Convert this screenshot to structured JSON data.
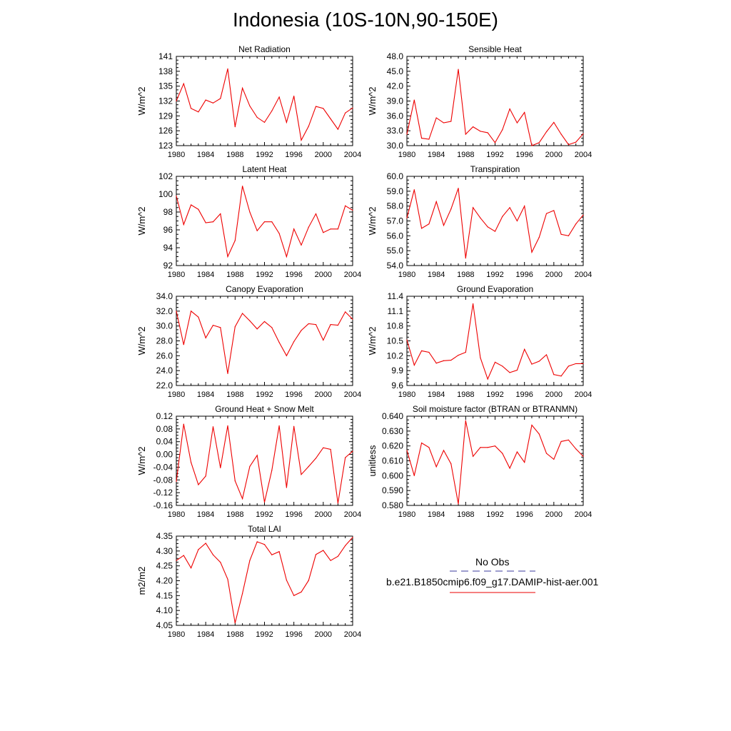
{
  "figure": {
    "title": "Indonesia (10S-10N,90-150E)"
  },
  "legend": {
    "obs_label": "No Obs",
    "obs_color": "#3b3b9c",
    "case_label": "b.e21.B1850cmip6.f09_g17.DAMIP-hist-aer.001",
    "case_color": "#ee0000"
  },
  "chart_data": [
    {
      "type": "line",
      "title": "Net Radiation",
      "xlabel": "",
      "ylabel": "W/m^2",
      "x": [
        1980,
        1981,
        1982,
        1983,
        1984,
        1985,
        1986,
        1987,
        1988,
        1989,
        1990,
        1991,
        1992,
        1993,
        1994,
        1995,
        1996,
        1997,
        1998,
        1999,
        2000,
        2001,
        2002,
        2003,
        2004
      ],
      "xlim": [
        1980,
        2004
      ],
      "ylim": [
        123,
        141
      ],
      "yticks": [
        123,
        126,
        129,
        132,
        135,
        138,
        141
      ],
      "ytick_labels": [
        "123",
        "126",
        "129",
        "132",
        "135",
        "138",
        "141"
      ],
      "series": [
        {
          "values": [
            132.0,
            135.5,
            130.5,
            129.8,
            132.2,
            131.6,
            132.5,
            138.5,
            126.8,
            134.6,
            131.0,
            128.7,
            127.7,
            130.0,
            132.8,
            127.7,
            133.0,
            124.1,
            126.9,
            130.9,
            130.5,
            128.4,
            126.3,
            129.6,
            130.6
          ]
        }
      ]
    },
    {
      "type": "line",
      "title": "Sensible Heat",
      "xlabel": "",
      "ylabel": "W/m^2",
      "x": [
        1980,
        1981,
        1982,
        1983,
        1984,
        1985,
        1986,
        1987,
        1988,
        1989,
        1990,
        1991,
        1992,
        1993,
        1994,
        1995,
        1996,
        1997,
        1998,
        1999,
        2000,
        2001,
        2002,
        2003,
        2004
      ],
      "xlim": [
        1980,
        2004
      ],
      "ylim": [
        30,
        48
      ],
      "yticks": [
        30,
        33,
        36,
        39,
        42,
        45,
        48
      ],
      "ytick_labels": [
        "30.0",
        "33.0",
        "36.0",
        "39.0",
        "42.0",
        "45.0",
        "48.0"
      ],
      "series": [
        {
          "values": [
            32.3,
            39.2,
            31.5,
            31.3,
            35.6,
            34.6,
            34.9,
            45.4,
            32.3,
            33.8,
            32.9,
            32.6,
            30.6,
            33.2,
            37.4,
            34.6,
            36.7,
            30.0,
            30.6,
            32.8,
            34.7,
            32.3,
            30.2,
            30.7,
            32.4
          ]
        }
      ]
    },
    {
      "type": "line",
      "title": "Latent Heat",
      "xlabel": "",
      "ylabel": "W/m^2",
      "x": [
        1980,
        1981,
        1982,
        1983,
        1984,
        1985,
        1986,
        1987,
        1988,
        1989,
        1990,
        1991,
        1992,
        1993,
        1994,
        1995,
        1996,
        1997,
        1998,
        1999,
        2000,
        2001,
        2002,
        2003,
        2004
      ],
      "xlim": [
        1980,
        2004
      ],
      "ylim": [
        92,
        102
      ],
      "yticks": [
        92,
        94,
        96,
        98,
        100,
        102
      ],
      "ytick_labels": [
        "92",
        "94",
        "96",
        "98",
        "100",
        "102"
      ],
      "series": [
        {
          "values": [
            99.8,
            96.6,
            98.8,
            98.3,
            96.8,
            96.9,
            97.8,
            93.0,
            94.8,
            100.9,
            98.0,
            95.9,
            96.9,
            96.9,
            95.6,
            93.0,
            96.1,
            94.3,
            96.3,
            97.8,
            95.7,
            96.1,
            96.1,
            98.7,
            98.2
          ]
        }
      ]
    },
    {
      "type": "line",
      "title": "Transpiration",
      "xlabel": "",
      "ylabel": "W/m^2",
      "x": [
        1980,
        1981,
        1982,
        1983,
        1984,
        1985,
        1986,
        1987,
        1988,
        1989,
        1990,
        1991,
        1992,
        1993,
        1994,
        1995,
        1996,
        1997,
        1998,
        1999,
        2000,
        2001,
        2002,
        2003,
        2004
      ],
      "xlim": [
        1980,
        2004
      ],
      "ylim": [
        54,
        60
      ],
      "yticks": [
        54,
        55,
        56,
        57,
        58,
        59,
        60
      ],
      "ytick_labels": [
        "54.0",
        "55.0",
        "56.0",
        "57.0",
        "58.0",
        "59.0",
        "60.0"
      ],
      "series": [
        {
          "values": [
            57.2,
            59.1,
            56.5,
            56.8,
            58.3,
            56.7,
            57.8,
            59.2,
            54.5,
            57.9,
            57.2,
            56.6,
            56.3,
            57.3,
            57.9,
            57.0,
            58.0,
            54.9,
            55.9,
            57.5,
            57.7,
            56.1,
            56.0,
            56.8,
            57.4
          ]
        }
      ]
    },
    {
      "type": "line",
      "title": "Canopy Evaporation",
      "xlabel": "",
      "ylabel": "W/m^2",
      "x": [
        1980,
        1981,
        1982,
        1983,
        1984,
        1985,
        1986,
        1987,
        1988,
        1989,
        1990,
        1991,
        1992,
        1993,
        1994,
        1995,
        1996,
        1997,
        1998,
        1999,
        2000,
        2001,
        2002,
        2003,
        2004
      ],
      "xlim": [
        1980,
        2004
      ],
      "ylim": [
        22,
        34
      ],
      "yticks": [
        22,
        24,
        26,
        28,
        30,
        32,
        34
      ],
      "ytick_labels": [
        "22.0",
        "24.0",
        "26.0",
        "28.0",
        "30.0",
        "32.0",
        "34.0"
      ],
      "series": [
        {
          "values": [
            32.0,
            27.5,
            32.0,
            31.2,
            28.4,
            30.1,
            29.8,
            23.6,
            29.9,
            31.7,
            30.7,
            29.6,
            30.6,
            29.8,
            27.8,
            26.0,
            27.9,
            29.4,
            30.3,
            30.2,
            28.1,
            30.2,
            30.1,
            31.9,
            30.9
          ]
        }
      ]
    },
    {
      "type": "line",
      "title": "Ground Evaporation",
      "xlabel": "",
      "ylabel": "W/m^2",
      "x": [
        1980,
        1981,
        1982,
        1983,
        1984,
        1985,
        1986,
        1987,
        1988,
        1989,
        1990,
        1991,
        1992,
        1993,
        1994,
        1995,
        1996,
        1997,
        1998,
        1999,
        2000,
        2001,
        2002,
        2003,
        2004
      ],
      "xlim": [
        1980,
        2004
      ],
      "ylim": [
        9.6,
        11.4
      ],
      "yticks": [
        9.6,
        9.9,
        10.2,
        10.5,
        10.8,
        11.1,
        11.4
      ],
      "ytick_labels": [
        "9.6",
        "9.9",
        "10.2",
        "10.5",
        "10.8",
        "11.1",
        "11.4"
      ],
      "series": [
        {
          "values": [
            10.52,
            10.01,
            10.3,
            10.27,
            10.05,
            10.1,
            10.11,
            10.21,
            10.27,
            11.25,
            10.16,
            9.73,
            10.07,
            9.99,
            9.86,
            9.91,
            10.33,
            10.03,
            10.09,
            10.22,
            9.82,
            9.79,
            9.99,
            10.04,
            10.04
          ]
        }
      ]
    },
    {
      "type": "line",
      "title": "Ground Heat + Snow Melt",
      "xlabel": "",
      "ylabel": "W/m^2",
      "x": [
        1980,
        1981,
        1982,
        1983,
        1984,
        1985,
        1986,
        1987,
        1988,
        1989,
        1990,
        1991,
        1992,
        1993,
        1994,
        1995,
        1996,
        1997,
        1998,
        1999,
        2000,
        2001,
        2002,
        2003,
        2004
      ],
      "xlim": [
        1980,
        2004
      ],
      "ylim": [
        -0.16,
        0.12
      ],
      "yticks": [
        -0.16,
        -0.12,
        -0.08,
        -0.04,
        0.0,
        0.04,
        0.08,
        0.12
      ],
      "ytick_labels": [
        "-0.16",
        "-0.12",
        "-0.08",
        "-0.04",
        "0.00",
        "0.04",
        "0.08",
        "0.12"
      ],
      "series": [
        {
          "values": [
            -0.085,
            0.095,
            -0.025,
            -0.095,
            -0.068,
            0.087,
            -0.042,
            0.09,
            -0.083,
            -0.139,
            -0.038,
            -0.003,
            -0.15,
            -0.05,
            0.09,
            -0.104,
            0.088,
            -0.063,
            -0.038,
            -0.012,
            0.021,
            0.016,
            -0.153,
            -0.01,
            0.01
          ]
        }
      ]
    },
    {
      "type": "line",
      "title": "Soil moisture factor (BTRAN or BTRANMN)",
      "xlabel": "",
      "ylabel": "unitless",
      "x": [
        1980,
        1981,
        1982,
        1983,
        1984,
        1985,
        1986,
        1987,
        1988,
        1989,
        1990,
        1991,
        1992,
        1993,
        1994,
        1995,
        1996,
        1997,
        1998,
        1999,
        2000,
        2001,
        2002,
        2003,
        2004
      ],
      "xlim": [
        1980,
        2004
      ],
      "ylim": [
        0.58,
        0.64
      ],
      "yticks": [
        0.58,
        0.59,
        0.6,
        0.61,
        0.62,
        0.63,
        0.64
      ],
      "ytick_labels": [
        "0.580",
        "0.590",
        "0.600",
        "0.610",
        "0.620",
        "0.630",
        "0.640"
      ],
      "series": [
        {
          "values": [
            0.617,
            0.6,
            0.622,
            0.619,
            0.606,
            0.617,
            0.608,
            0.581,
            0.637,
            0.613,
            0.619,
            0.619,
            0.62,
            0.615,
            0.605,
            0.616,
            0.609,
            0.634,
            0.628,
            0.615,
            0.611,
            0.623,
            0.624,
            0.618,
            0.613
          ]
        }
      ]
    },
    {
      "type": "line",
      "title": "Total LAI",
      "xlabel": "",
      "ylabel": "m2/m2",
      "x": [
        1980,
        1981,
        1982,
        1983,
        1984,
        1985,
        1986,
        1987,
        1988,
        1989,
        1990,
        1991,
        1992,
        1993,
        1994,
        1995,
        1996,
        1997,
        1998,
        1999,
        2000,
        2001,
        2002,
        2003,
        2004
      ],
      "xlim": [
        1980,
        2004
      ],
      "ylim": [
        4.05,
        4.35
      ],
      "yticks": [
        4.05,
        4.1,
        4.15,
        4.2,
        4.25,
        4.3,
        4.35
      ],
      "ytick_labels": [
        "4.05",
        "4.10",
        "4.15",
        "4.20",
        "4.25",
        "4.30",
        "4.35"
      ],
      "series": [
        {
          "values": [
            4.268,
            4.285,
            4.243,
            4.305,
            4.326,
            4.287,
            4.262,
            4.205,
            4.058,
            4.157,
            4.268,
            4.331,
            4.322,
            4.287,
            4.298,
            4.202,
            4.15,
            4.162,
            4.201,
            4.288,
            4.302,
            4.268,
            4.282,
            4.318,
            4.346
          ]
        }
      ]
    }
  ]
}
